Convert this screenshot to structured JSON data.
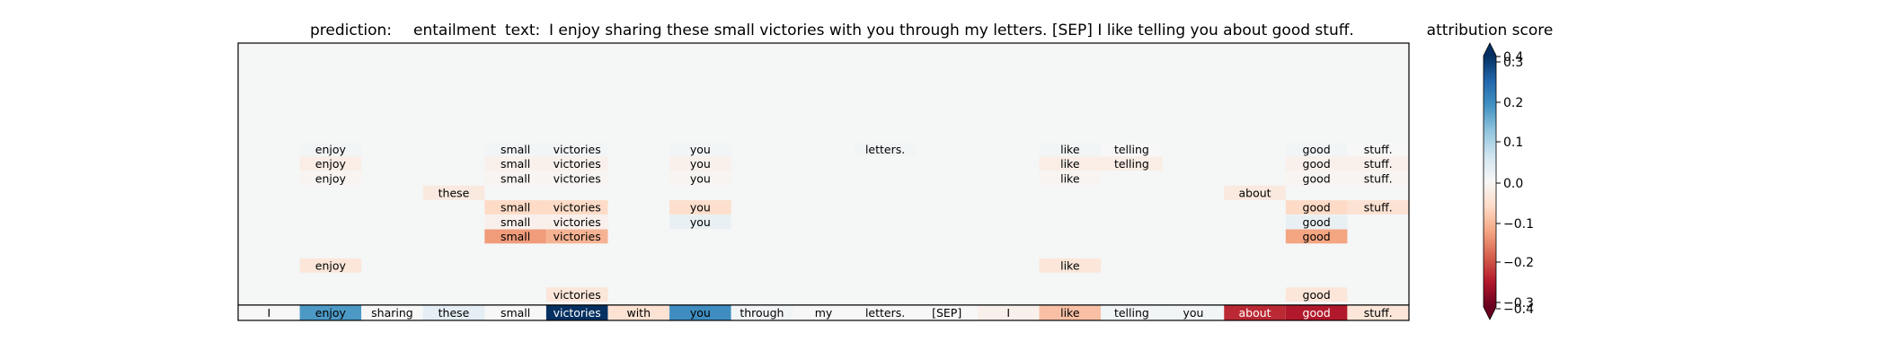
{
  "chart_data": {
    "type": "heatmap",
    "title_prediction_label": "prediction:",
    "title_prediction_value": "entailment",
    "title_text_label": "text:",
    "title_text_value": "I enjoy sharing these small victories with you through my letters. [SEP] I like telling you about good stuff.",
    "colorbar_title": "attribution score",
    "colormap": "RdBu",
    "vmin": -0.4,
    "vmax": 0.4,
    "colorbar_ticks": [
      0.4,
      0.3,
      0.2,
      0.1,
      0.0,
      -0.1,
      -0.2,
      -0.3,
      -0.4
    ],
    "colorbar_tick_labels": [
      "0.4",
      "0.3",
      "0.2",
      "0.1",
      "0.0",
      "−0.1",
      "−0.2",
      "−0.3",
      "−0.4"
    ],
    "tokens": [
      "I",
      "enjoy",
      "sharing",
      "these",
      "small",
      "victories",
      "with",
      "you",
      "through",
      "my",
      "letters.",
      "[SEP]",
      "I",
      "like",
      "telling",
      "you",
      "about",
      "good",
      "stuff."
    ],
    "token_scores": [
      0.0,
      0.23,
      0.0,
      0.04,
      0.0,
      0.4,
      -0.06,
      0.25,
      0.01,
      0.0,
      0.0,
      0.0,
      -0.02,
      -0.12,
      0.01,
      0.01,
      -0.3,
      -0.32,
      -0.05
    ],
    "rows": [
      {
        "cells": [
          {
            "i": 1,
            "v": 0.01
          },
          {
            "i": 4,
            "v": 0.01
          },
          {
            "i": 5,
            "v": 0.01
          },
          {
            "i": 7,
            "v": 0.01
          },
          {
            "i": 10,
            "v": 0.01
          },
          {
            "i": 13,
            "v": 0.01
          },
          {
            "i": 14,
            "v": 0.0
          },
          {
            "i": 17,
            "v": 0.01
          },
          {
            "i": 18,
            "v": 0.0
          }
        ]
      },
      {
        "cells": [
          {
            "i": 1,
            "v": -0.03
          },
          {
            "i": 4,
            "v": -0.02
          },
          {
            "i": 5,
            "v": -0.02
          },
          {
            "i": 7,
            "v": -0.02
          },
          {
            "i": 13,
            "v": -0.03
          },
          {
            "i": 14,
            "v": -0.03
          },
          {
            "i": 17,
            "v": -0.02
          },
          {
            "i": 18,
            "v": -0.02
          }
        ]
      },
      {
        "cells": [
          {
            "i": 1,
            "v": -0.01
          },
          {
            "i": 4,
            "v": -0.01
          },
          {
            "i": 5,
            "v": -0.01
          },
          {
            "i": 7,
            "v": -0.01
          },
          {
            "i": 13,
            "v": -0.01
          },
          {
            "i": 17,
            "v": -0.01
          },
          {
            "i": 18,
            "v": -0.01
          }
        ]
      },
      {
        "cells": [
          {
            "i": 3,
            "v": -0.04
          },
          {
            "i": 16,
            "v": -0.04
          }
        ]
      },
      {
        "cells": [
          {
            "i": 4,
            "v": -0.08
          },
          {
            "i": 5,
            "v": -0.08
          },
          {
            "i": 7,
            "v": -0.07
          },
          {
            "i": 17,
            "v": -0.08
          },
          {
            "i": 18,
            "v": -0.06
          }
        ]
      },
      {
        "cells": [
          {
            "i": 4,
            "v": -0.02
          },
          {
            "i": 5,
            "v": -0.02
          },
          {
            "i": 7,
            "v": 0.03
          },
          {
            "i": 17,
            "v": 0.03
          }
        ]
      },
      {
        "cells": [
          {
            "i": 4,
            "v": -0.17
          },
          {
            "i": 5,
            "v": -0.14
          },
          {
            "i": 17,
            "v": -0.16
          }
        ]
      },
      {
        "cells": []
      },
      {
        "cells": [
          {
            "i": 1,
            "v": -0.05
          },
          {
            "i": 13,
            "v": -0.05
          }
        ]
      },
      {
        "cells": []
      },
      {
        "cells": [
          {
            "i": 5,
            "v": -0.05
          },
          {
            "i": 17,
            "v": -0.05
          }
        ]
      }
    ]
  }
}
